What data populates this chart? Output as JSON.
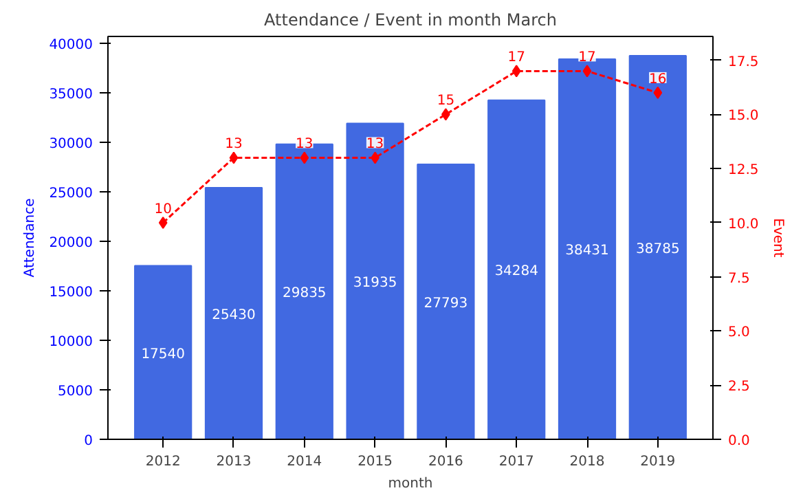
{
  "chart_data": {
    "type": "bar",
    "title": "Attendance / Event in month March",
    "xlabel": "month",
    "ylabel": "Attendance",
    "y2label": "Event",
    "categories": [
      "2012",
      "2013",
      "2014",
      "2015",
      "2016",
      "2017",
      "2018",
      "2019"
    ],
    "series": [
      {
        "name": null,
        "color": "#4169e1",
        "values": [
          17540,
          25430,
          29835,
          31935,
          27793,
          34284,
          38431,
          38785
        ]
      },
      {
        "name": null,
        "type": "line",
        "axis": "y2",
        "color": "#ff0000",
        "marker": "diamond",
        "line_style": "dashed",
        "values": [
          10,
          13,
          13,
          13,
          15,
          17,
          17,
          16
        ]
      }
    ],
    "ylim": [
      0,
      40724
    ],
    "yticks": [
      0,
      5000,
      10000,
      15000,
      20000,
      25000,
      30000,
      35000,
      40000
    ],
    "y2lim": [
      0,
      18.6
    ],
    "y2ticks": [
      {
        "value": 0,
        "label": "0.0"
      },
      {
        "value": 2.5,
        "label": "2.5"
      },
      {
        "value": 5,
        "label": "5.0"
      },
      {
        "value": 7.5,
        "label": "7.5"
      },
      {
        "value": 10,
        "label": "10.0"
      },
      {
        "value": 12.5,
        "label": "12.5"
      },
      {
        "value": 15,
        "label": "15.0"
      },
      {
        "value": 17.5,
        "label": "17.5"
      }
    ],
    "data_labels": true,
    "grid": false
  }
}
